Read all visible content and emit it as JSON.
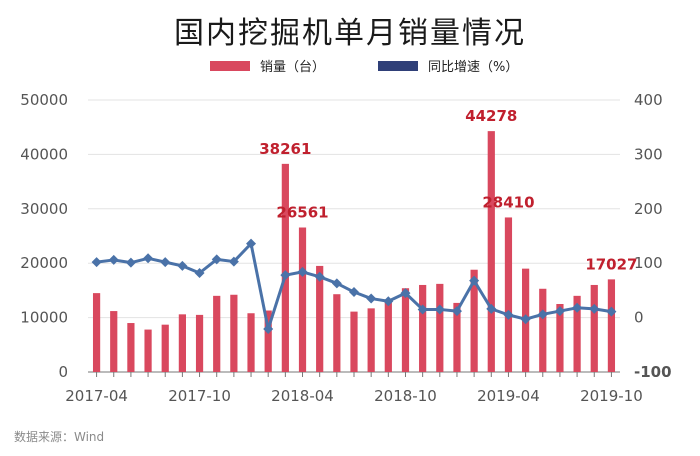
{
  "title": "国内挖掘机单月销量情况",
  "legend": {
    "bar_label": "销量（台）",
    "line_label": "同比增速（%）"
  },
  "source": "数据来源：Wind",
  "colors": {
    "bar": "#d9485e",
    "line": "#4a72a8",
    "neg_tick": "#c0202e"
  },
  "chart_data": {
    "type": "bar+line",
    "x": [
      "2017-04",
      "2017-05",
      "2017-06",
      "2017-07",
      "2017-08",
      "2017-09",
      "2017-10",
      "2017-11",
      "2017-12",
      "2018-01",
      "2018-02",
      "2018-03",
      "2018-04",
      "2018-05",
      "2018-06",
      "2018-07",
      "2018-08",
      "2018-09",
      "2018-10",
      "2018-11",
      "2018-12",
      "2019-01",
      "2019-02",
      "2019-03",
      "2019-04",
      "2019-05",
      "2019-06",
      "2019-07",
      "2019-08",
      "2019-09",
      "2019-10"
    ],
    "xtick_labels": [
      "2017-04",
      "2017-10",
      "2018-04",
      "2018-10",
      "2019-04",
      "2019-10"
    ],
    "series": [
      {
        "name": "销量（台）",
        "axis": "left",
        "type": "bar",
        "values": [
          14500,
          11200,
          9000,
          7800,
          8700,
          10600,
          10500,
          14000,
          14200,
          10800,
          11300,
          38261,
          26561,
          19500,
          14300,
          11100,
          11700,
          13000,
          15400,
          16000,
          16200,
          12700,
          18800,
          44278,
          28410,
          19000,
          15300,
          12500,
          14000,
          16000,
          17027
        ]
      },
      {
        "name": "同比增速（%）",
        "axis": "right",
        "type": "line",
        "values": [
          102,
          106,
          101,
          109,
          102,
          95,
          82,
          107,
          103,
          136,
          -21,
          78,
          84,
          75,
          63,
          47,
          35,
          30,
          45,
          15,
          15,
          12,
          68,
          16,
          5,
          -3,
          6,
          12,
          18,
          16,
          11
        ]
      }
    ],
    "data_labels": [
      {
        "index": 11,
        "text": "38261"
      },
      {
        "index": 12,
        "text": "26561"
      },
      {
        "index": 23,
        "text": "44278"
      },
      {
        "index": 24,
        "text": "28410"
      },
      {
        "index": 30,
        "text": "17027"
      }
    ],
    "y_left": {
      "ticks": [
        "0",
        "10000",
        "20000",
        "30000",
        "40000",
        "50000"
      ],
      "min": 0,
      "max": 50000
    },
    "y_right": {
      "ticks": [
        "-100",
        "0",
        "100",
        "200",
        "300",
        "400"
      ],
      "min": -100,
      "max": 400
    },
    "grid": true,
    "legend_position": "top"
  }
}
